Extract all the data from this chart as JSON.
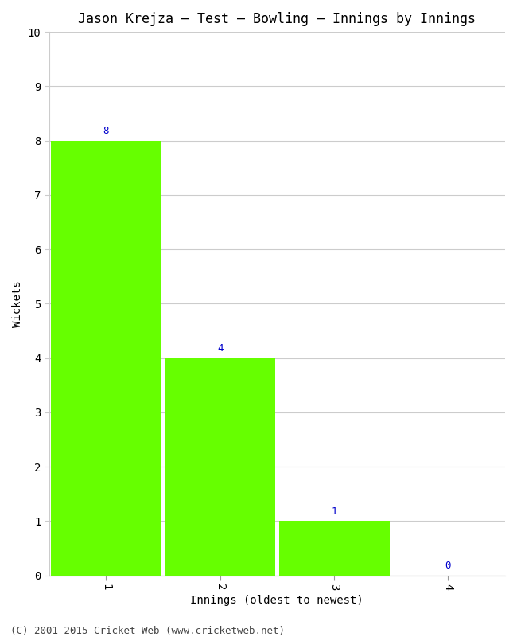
{
  "title": "Jason Krejza – Test – Bowling – Innings by Innings",
  "xlabel": "Innings (oldest to newest)",
  "ylabel": "Wickets",
  "categories": [
    1,
    2,
    3,
    4
  ],
  "values": [
    8,
    4,
    1,
    0
  ],
  "bar_color": "#66ff00",
  "label_color": "#0000cc",
  "ylim": [
    0,
    10
  ],
  "yticks": [
    0,
    1,
    2,
    3,
    4,
    5,
    6,
    7,
    8,
    9,
    10
  ],
  "xticks": [
    1,
    2,
    3,
    4
  ],
  "background_color": "#ffffff",
  "grid_color": "#cccccc",
  "footer": "(C) 2001-2015 Cricket Web (www.cricketweb.net)",
  "title_fontsize": 12,
  "axis_label_fontsize": 10,
  "tick_fontsize": 10,
  "annotation_fontsize": 9,
  "footer_fontsize": 9,
  "bar_width": 0.97,
  "xlim": [
    0.5,
    4.5
  ]
}
